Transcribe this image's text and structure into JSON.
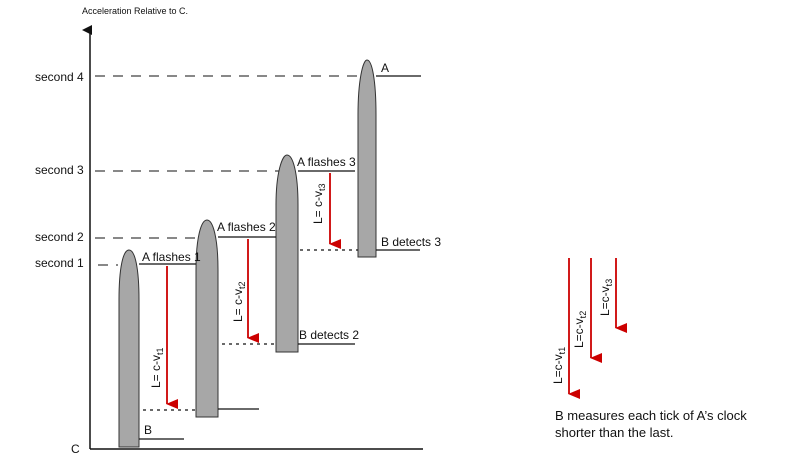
{
  "title": "Acceleration Relative to C.",
  "axis": {
    "origin_label": "C",
    "second_labels": [
      "second 1",
      "second 2",
      "second 3",
      "second 4"
    ]
  },
  "shapes": {
    "flash_labels": [
      "A flashes 1",
      "A flashes 2",
      "A flashes 3"
    ],
    "top_label": "A",
    "bottom_label": "B",
    "detect_labels": [
      "B detects 2",
      "B detects 3"
    ]
  },
  "formula": {
    "prefix": "L= c-v",
    "prefix_compact": "L=c-v",
    "sub_t": "t",
    "sub_idx": [
      "1",
      "2",
      "3"
    ]
  },
  "caption": {
    "line1": "B measures each tick of A’s clock",
    "line2": "shorter than the last."
  },
  "colors": {
    "shape_fill": "#a7a7a7",
    "arrow": "#cc0000",
    "line": "#111111"
  }
}
